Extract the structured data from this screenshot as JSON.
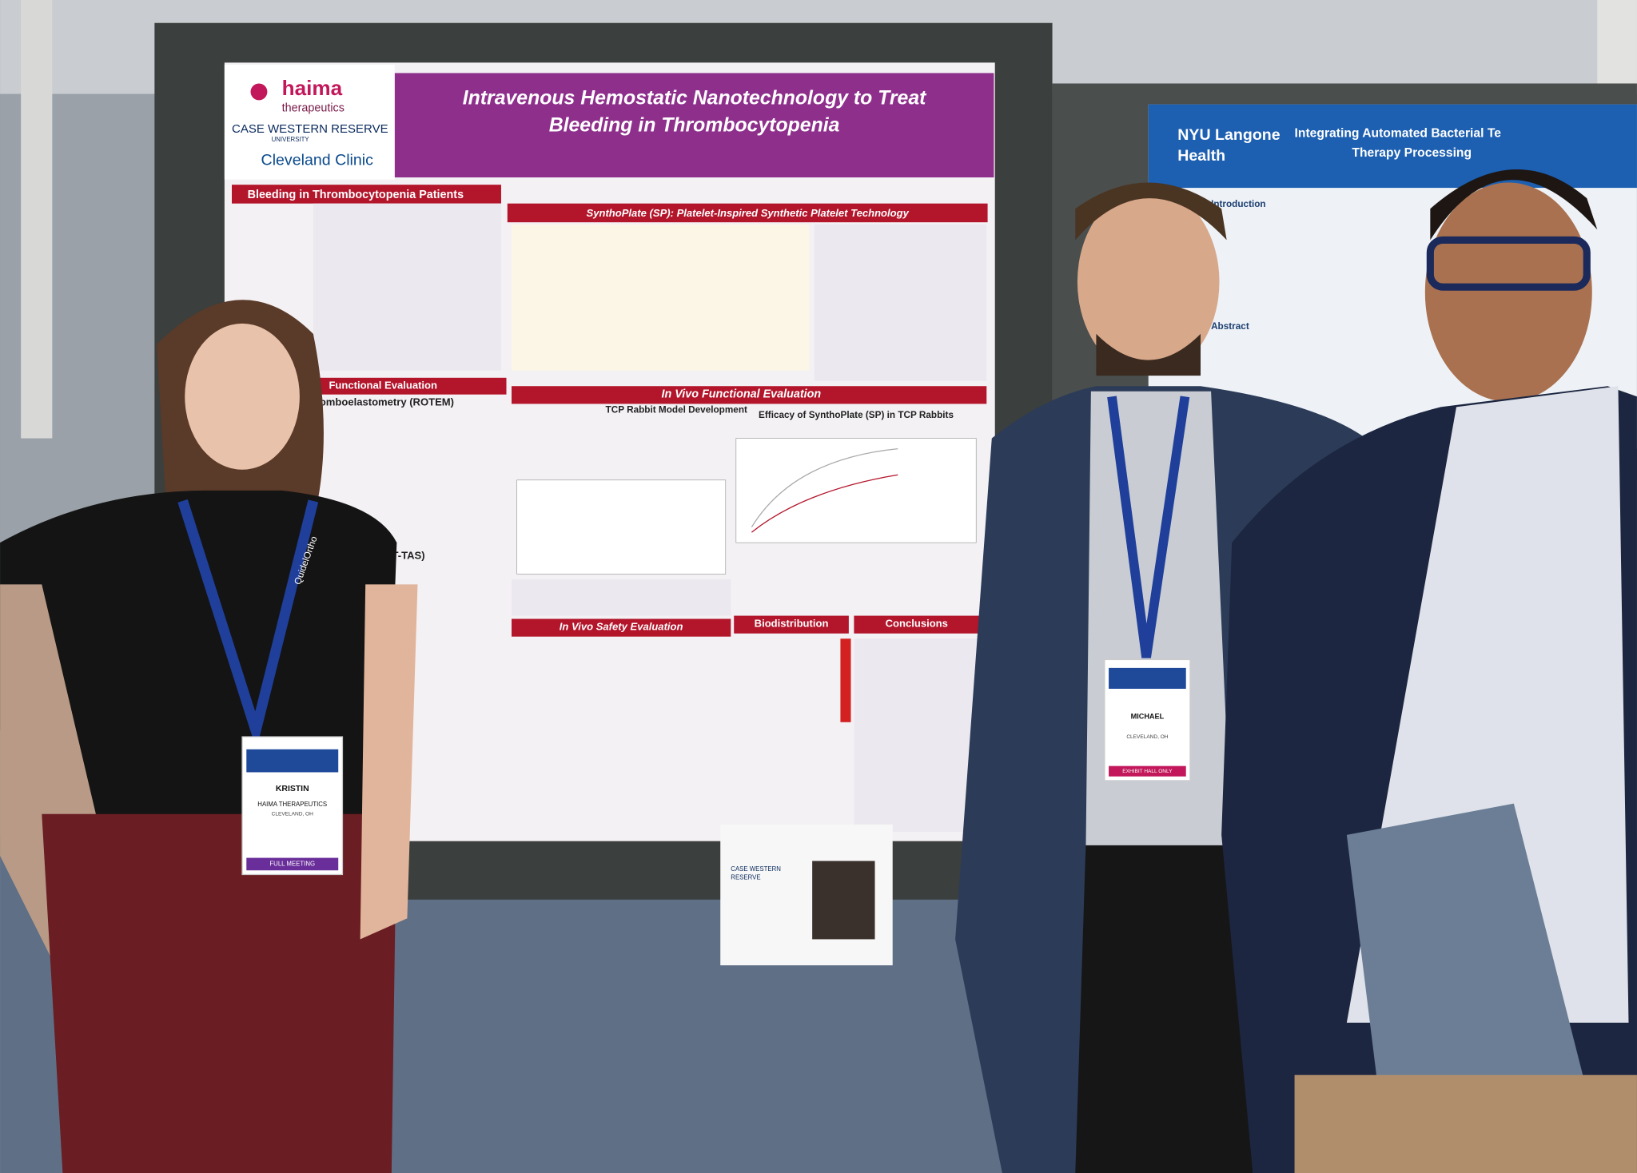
{
  "poster": {
    "logos": [
      "haima",
      "therapeutics",
      "CASE WESTERN RESERVE",
      "UNIVERSITY",
      "Cleveland Clinic"
    ],
    "title": [
      "Intravenous Hemostatic Nanotechnology to Treat",
      "Bleeding in Thrombocytopenia"
    ],
    "sections": [
      "Bleeding in Thrombocytopenia Patients",
      "SynthoPlate (SP): Platelet-Inspired Synthetic Platelet Technology",
      "Functional Evaluation",
      "Thromboelastometry (ROTEM)",
      "In Vivo Functional Evaluation",
      "TCP Rabbit Model Development",
      "Efficacy of SynthoPlate (SP) in TCP Rabbits",
      "Analysis System (T-TAS)",
      "In Vivo Safety Evaluation",
      "Biodistribution",
      "Conclusions"
    ]
  },
  "right_poster": {
    "logo": [
      "NYU Langone",
      "Health"
    ],
    "title": [
      "Integrating Automated Bacterial Te",
      "Therapy Processing"
    ],
    "sections": [
      "Introduction",
      "Abstract"
    ]
  },
  "badges": [
    {
      "name": "KRISTIN",
      "org": "HAIMA THERAPEUTICS",
      "city": "CLEVELAND, OH",
      "tier": "FULL MEETING"
    },
    {
      "name": "MICHAEL",
      "city": "CLEVELAND, OH",
      "tier": "EXHIBIT HALL ONLY"
    }
  ],
  "lanyard": "QuidelOrtho",
  "sheet": [
    "CASE WESTERN",
    "RESERVE"
  ]
}
